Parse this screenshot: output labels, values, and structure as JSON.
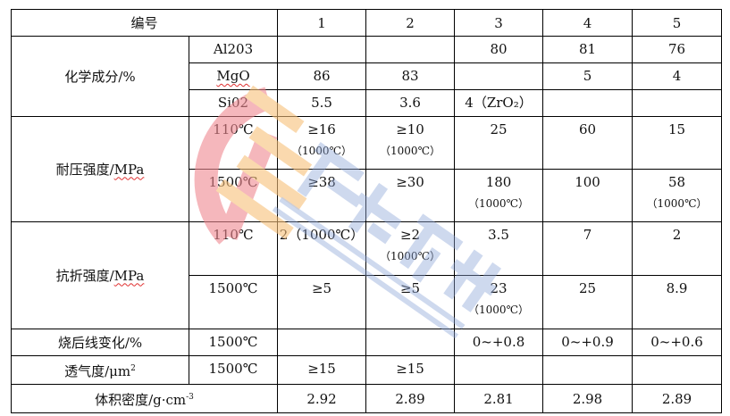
{
  "header": {
    "label": "编号",
    "columns": [
      "1",
      "2",
      "3",
      "4",
      "5"
    ]
  },
  "rows": [
    {
      "group": "化学成分/%",
      "sub": "Al203",
      "values": [
        "",
        "",
        "80",
        "81",
        "76"
      ]
    },
    {
      "group": "",
      "sub": "MgO",
      "values": [
        "86",
        "83",
        "",
        "5",
        "4"
      ]
    },
    {
      "group": "",
      "sub": "Si02",
      "values": [
        "5.5",
        "3.6",
        "4（ZrO₂）",
        "",
        ""
      ]
    },
    {
      "group": "耐压强度/MPa",
      "sub": "110℃",
      "values": [
        "≥16",
        "≥10",
        "25",
        "60",
        "15"
      ],
      "notes": [
        "（1000℃）",
        "（1000℃）",
        "",
        "",
        ""
      ]
    },
    {
      "group": "",
      "sub": "1500℃",
      "values": [
        "≥38",
        "≥30",
        "180",
        "100",
        "58"
      ],
      "notes": [
        "",
        "",
        "（1000℃）",
        "",
        "（1000℃）"
      ]
    },
    {
      "group": "抗折强度/MPa",
      "sub": "110℃",
      "values": [
        "2（1000℃）",
        "≥2",
        "3.5",
        "7",
        "2"
      ],
      "notes": [
        "",
        "（1000℃）",
        "",
        "",
        ""
      ]
    },
    {
      "group": "",
      "sub": "1500℃",
      "values": [
        "≥5",
        "≥5",
        "23",
        "25",
        "8.9"
      ],
      "notes": [
        "",
        "",
        "（1000℃）",
        "",
        ""
      ]
    },
    {
      "group": "烧后线变化/%",
      "sub": "1500℃",
      "values": [
        "",
        "",
        "0~+0.8",
        "0~+0.9",
        "0~+0.6"
      ]
    },
    {
      "group": "透气度/μm",
      "group_sup": "2",
      "sub": "1500℃",
      "values": [
        "≥15",
        "≥15",
        "",
        "",
        ""
      ]
    }
  ],
  "density": {
    "label": "体积密度/g·cm",
    "sup": "-3",
    "values": [
      "2.92",
      "2.89",
      "2.81",
      "2.98",
      "2.89"
    ]
  },
  "watermark": {
    "text": "骏达新材",
    "latin": "JUDAXINCAI",
    "colors": [
      "#f08890",
      "#f7c07a",
      "#8ea6d8"
    ]
  }
}
